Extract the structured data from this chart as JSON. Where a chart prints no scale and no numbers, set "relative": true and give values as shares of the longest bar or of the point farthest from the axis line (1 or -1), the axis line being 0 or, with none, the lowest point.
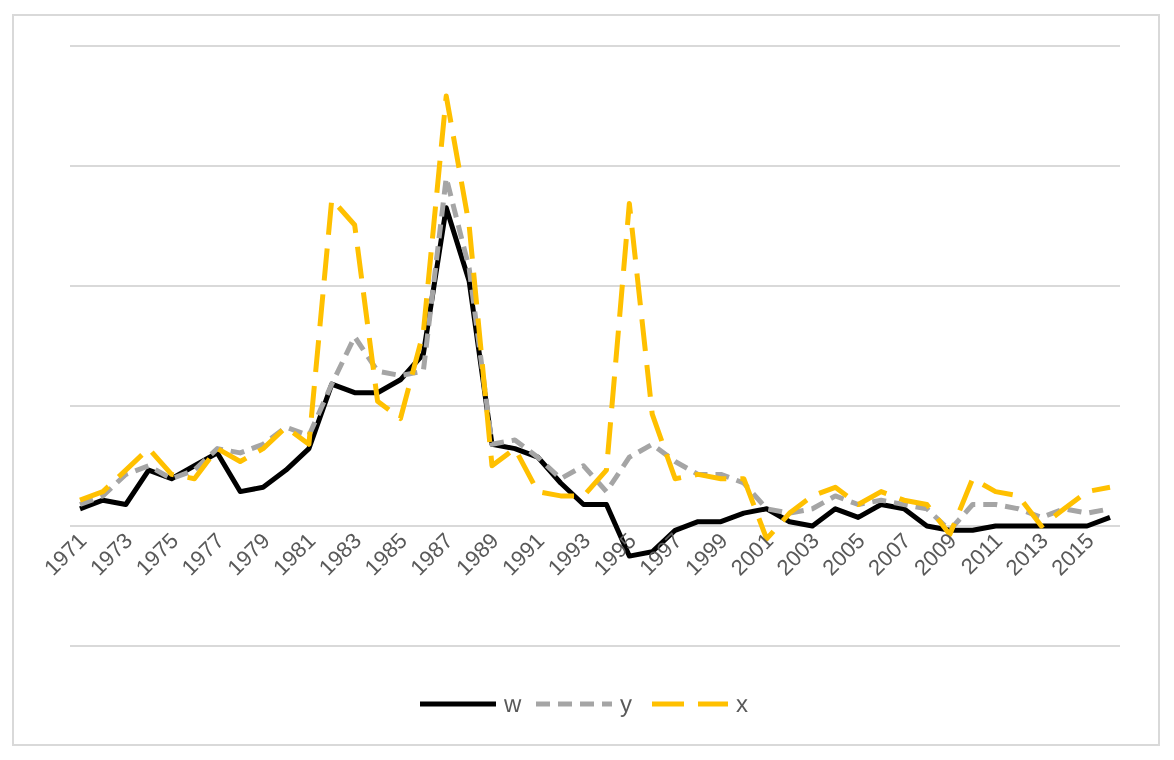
{
  "chart_data": {
    "type": "line",
    "relative": true,
    "grid": true,
    "legend": "bottom",
    "categories": [
      "1971",
      null,
      "1973",
      null,
      "1975",
      null,
      "1977",
      null,
      "1979",
      null,
      "1981",
      null,
      "1983",
      null,
      "1985",
      null,
      "1987",
      null,
      "1989",
      null,
      "1991",
      null,
      "1993",
      null,
      "1995",
      null,
      "1997",
      null,
      "1999",
      null,
      "2001",
      null,
      "2003",
      null,
      "2005",
      null,
      "2007",
      null,
      "2009",
      null,
      "2011",
      null,
      "2013",
      null,
      "2015",
      null
    ],
    "series": [
      {
        "name": "w",
        "color": "#000000",
        "line_style": "solid",
        "values": [
          0.04,
          0.06,
          0.05,
          0.13,
          0.11,
          0.14,
          0.17,
          0.08,
          0.09,
          0.13,
          0.18,
          0.33,
          0.31,
          0.31,
          0.34,
          0.4,
          0.74,
          0.57,
          0.19,
          0.18,
          0.16,
          0.1,
          0.05,
          0.05,
          -0.07,
          -0.06,
          -0.01,
          0.01,
          0.01,
          0.03,
          0.04,
          0.01,
          0.0,
          0.04,
          0.02,
          0.05,
          0.04,
          0.0,
          -0.01,
          -0.01,
          0.0,
          0.0,
          0.0,
          0.0,
          0.0,
          0.02
        ]
      },
      {
        "name": "y",
        "color": "#a5a5a5",
        "line_style": "dashed",
        "values": [
          0.05,
          0.07,
          0.12,
          0.14,
          0.11,
          0.13,
          0.18,
          0.17,
          0.19,
          0.23,
          0.21,
          0.33,
          0.44,
          0.36,
          0.35,
          0.36,
          0.81,
          0.6,
          0.19,
          0.2,
          0.16,
          0.11,
          0.14,
          0.08,
          0.16,
          0.19,
          0.15,
          0.12,
          0.12,
          0.1,
          0.04,
          0.03,
          0.04,
          0.07,
          0.05,
          0.06,
          0.05,
          0.04,
          -0.01,
          0.05,
          0.05,
          0.04,
          0.02,
          0.04,
          0.03,
          0.04
        ]
      },
      {
        "name": "x",
        "color": "#ffc000",
        "line_style": "long-dashed",
        "values": [
          0.06,
          0.08,
          0.13,
          0.18,
          0.12,
          0.11,
          0.18,
          0.15,
          0.18,
          0.23,
          0.19,
          0.76,
          0.7,
          0.29,
          0.25,
          0.45,
          1,
          0.7,
          0.14,
          0.18,
          0.08,
          0.07,
          0.07,
          0.13,
          0.75,
          0.26,
          0.11,
          0.12,
          0.11,
          0.11,
          -0.03,
          0.03,
          0.07,
          0.09,
          0.05,
          0.08,
          0.06,
          0.05,
          -0.02,
          0.11,
          0.08,
          0.07,
          0.0,
          0.04,
          0.08,
          0.09
        ]
      }
    ]
  }
}
